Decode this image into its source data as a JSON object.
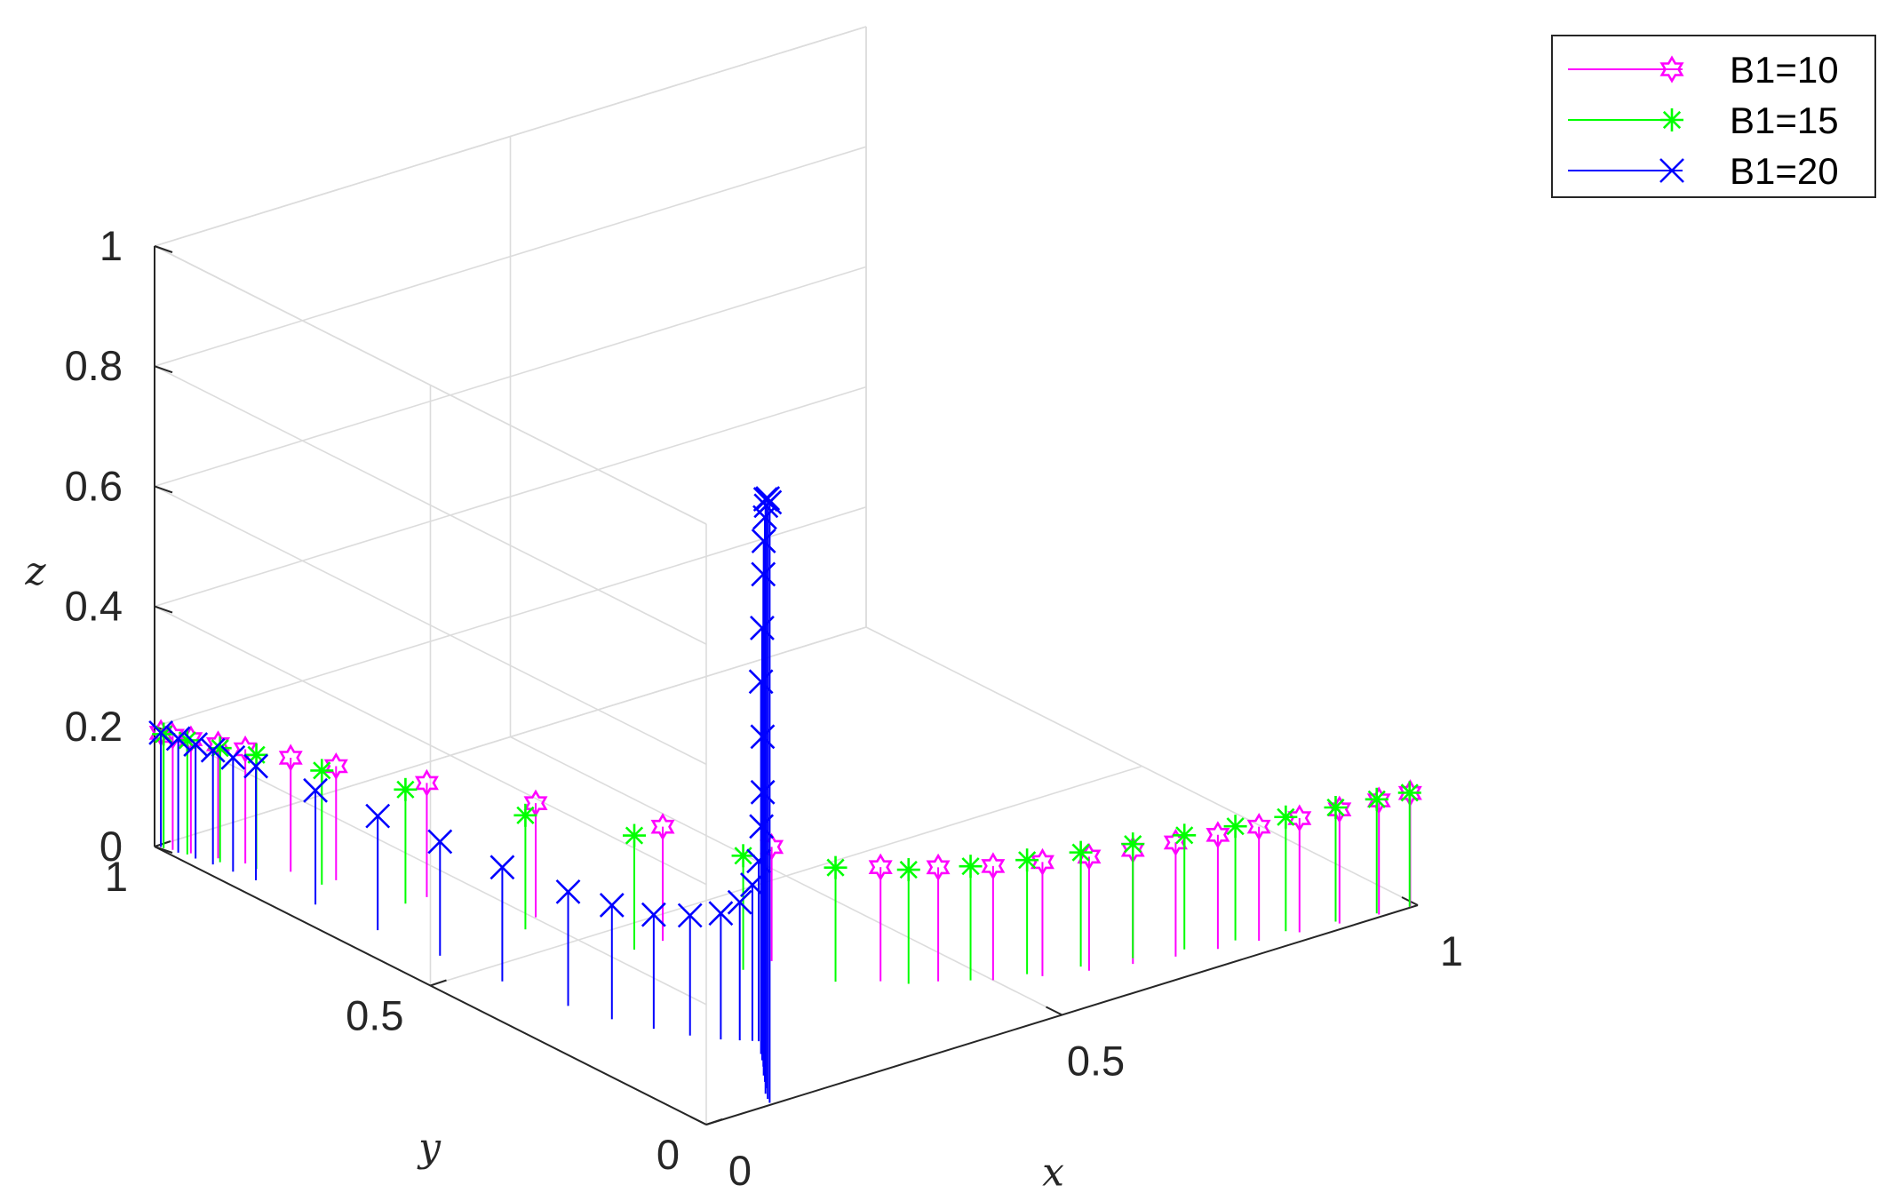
{
  "chart_data": {
    "type": "stem3",
    "title": "",
    "xlabel": "x",
    "ylabel": "y",
    "zlabel": "z",
    "xlim": [
      0,
      1
    ],
    "ylim": [
      0,
      1
    ],
    "zlim": [
      0,
      1
    ],
    "x_ticks": [
      "0",
      "0.5",
      "1"
    ],
    "y_ticks": [
      "0",
      "0.5",
      "1"
    ],
    "z_ticks": [
      "0",
      "0.2",
      "0.4",
      "0.6",
      "0.8",
      "1"
    ],
    "grid": true,
    "legend_position": "top-right",
    "series": [
      {
        "name": "B1=10",
        "color": "#ff00ff",
        "marker": "hexagram",
        "points": [
          {
            "x": 0.005,
            "y": 0.995,
            "z": 0.19
          },
          {
            "x": 0.01,
            "y": 0.98,
            "z": 0.19
          },
          {
            "x": 0.02,
            "y": 0.96,
            "z": 0.19
          },
          {
            "x": 0.035,
            "y": 0.93,
            "z": 0.19
          },
          {
            "x": 0.05,
            "y": 0.9,
            "z": 0.19
          },
          {
            "x": 0.075,
            "y": 0.85,
            "z": 0.19
          },
          {
            "x": 0.1,
            "y": 0.8,
            "z": 0.19
          },
          {
            "x": 0.15,
            "y": 0.7,
            "z": 0.19
          },
          {
            "x": 0.21,
            "y": 0.58,
            "z": 0.19
          },
          {
            "x": 0.28,
            "y": 0.44,
            "z": 0.19
          },
          {
            "x": 0.34,
            "y": 0.32,
            "z": 0.19
          },
          {
            "x": 0.4,
            "y": 0.2,
            "z": 0.19
          },
          {
            "x": 0.45,
            "y": 0.16,
            "z": 0.19
          },
          {
            "x": 0.5,
            "y": 0.125,
            "z": 0.19
          },
          {
            "x": 0.55,
            "y": 0.1,
            "z": 0.19
          },
          {
            "x": 0.6,
            "y": 0.08,
            "z": 0.19
          },
          {
            "x": 0.65,
            "y": 0.065,
            "z": 0.19
          },
          {
            "x": 0.7,
            "y": 0.052,
            "z": 0.19
          },
          {
            "x": 0.75,
            "y": 0.04,
            "z": 0.19
          },
          {
            "x": 0.8,
            "y": 0.03,
            "z": 0.19
          },
          {
            "x": 0.85,
            "y": 0.021,
            "z": 0.19
          },
          {
            "x": 0.9,
            "y": 0.013,
            "z": 0.19
          },
          {
            "x": 0.95,
            "y": 0.006,
            "z": 0.19
          },
          {
            "x": 0.99,
            "y": 0.001,
            "z": 0.19
          }
        ]
      },
      {
        "name": "B1=15",
        "color": "#00ff00",
        "marker": "asterisk",
        "points": [
          {
            "x": 0.005,
            "y": 0.99,
            "z": 0.19
          },
          {
            "x": 0.015,
            "y": 0.96,
            "z": 0.19
          },
          {
            "x": 0.03,
            "y": 0.92,
            "z": 0.19
          },
          {
            "x": 0.05,
            "y": 0.88,
            "z": 0.19
          },
          {
            "x": 0.08,
            "y": 0.8,
            "z": 0.19
          },
          {
            "x": 0.12,
            "y": 0.7,
            "z": 0.19
          },
          {
            "x": 0.18,
            "y": 0.56,
            "z": 0.19
          },
          {
            "x": 0.24,
            "y": 0.44,
            "z": 0.19
          },
          {
            "x": 0.3,
            "y": 0.32,
            "z": 0.19
          },
          {
            "x": 0.36,
            "y": 0.23,
            "z": 0.19
          },
          {
            "x": 0.42,
            "y": 0.175,
            "z": 0.19
          },
          {
            "x": 0.48,
            "y": 0.14,
            "z": 0.19
          },
          {
            "x": 0.54,
            "y": 0.115,
            "z": 0.19
          },
          {
            "x": 0.6,
            "y": 0.095,
            "z": 0.19
          },
          {
            "x": 0.66,
            "y": 0.078,
            "z": 0.19
          },
          {
            "x": 0.72,
            "y": 0.062,
            "z": 0.19
          },
          {
            "x": 0.78,
            "y": 0.047,
            "z": 0.19
          },
          {
            "x": 0.84,
            "y": 0.033,
            "z": 0.19
          },
          {
            "x": 0.9,
            "y": 0.02,
            "z": 0.19
          },
          {
            "x": 0.95,
            "y": 0.01,
            "z": 0.19
          },
          {
            "x": 0.99,
            "y": 0.002,
            "z": 0.19
          }
        ]
      },
      {
        "name": "B1=20",
        "color": "#0000ff",
        "marker": "x",
        "points": [
          {
            "x": 0.005,
            "y": 0.995,
            "z": 0.19
          },
          {
            "x": 0.01,
            "y": 0.97,
            "z": 0.19
          },
          {
            "x": 0.015,
            "y": 0.945,
            "z": 0.19
          },
          {
            "x": 0.02,
            "y": 0.92,
            "z": 0.19
          },
          {
            "x": 0.025,
            "y": 0.89,
            "z": 0.19
          },
          {
            "x": 0.03,
            "y": 0.855,
            "z": 0.19
          },
          {
            "x": 0.04,
            "y": 0.76,
            "z": 0.19
          },
          {
            "x": 0.05,
            "y": 0.66,
            "z": 0.19
          },
          {
            "x": 0.06,
            "y": 0.56,
            "z": 0.19
          },
          {
            "x": 0.07,
            "y": 0.46,
            "z": 0.19
          },
          {
            "x": 0.085,
            "y": 0.36,
            "z": 0.19
          },
          {
            "x": 0.1,
            "y": 0.3,
            "z": 0.19
          },
          {
            "x": 0.12,
            "y": 0.25,
            "z": 0.19
          },
          {
            "x": 0.14,
            "y": 0.21,
            "z": 0.2
          },
          {
            "x": 0.16,
            "y": 0.18,
            "z": 0.21
          },
          {
            "x": 0.175,
            "y": 0.165,
            "z": 0.23
          },
          {
            "x": 0.185,
            "y": 0.155,
            "z": 0.26
          },
          {
            "x": 0.19,
            "y": 0.15,
            "z": 0.3
          },
          {
            "x": 0.19,
            "y": 0.145,
            "z": 0.36
          },
          {
            "x": 0.188,
            "y": 0.14,
            "z": 0.42
          },
          {
            "x": 0.18,
            "y": 0.13,
            "z": 0.52
          },
          {
            "x": 0.17,
            "y": 0.12,
            "z": 0.62
          },
          {
            "x": 0.16,
            "y": 0.105,
            "z": 0.72
          },
          {
            "x": 0.15,
            "y": 0.09,
            "z": 0.82
          },
          {
            "x": 0.135,
            "y": 0.07,
            "z": 0.89
          },
          {
            "x": 0.125,
            "y": 0.055,
            "z": 0.94
          },
          {
            "x": 0.115,
            "y": 0.04,
            "z": 0.97
          },
          {
            "x": 0.105,
            "y": 0.028,
            "z": 0.99
          },
          {
            "x": 0.098,
            "y": 0.015,
            "z": 1.0
          },
          {
            "x": 0.093,
            "y": 0.005,
            "z": 1.0
          }
        ]
      }
    ]
  }
}
